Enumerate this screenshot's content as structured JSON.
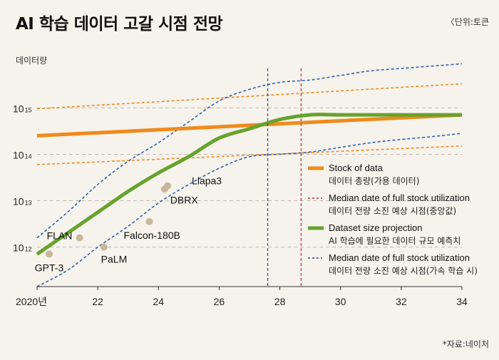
{
  "title": "AI 학습 데이터 고갈 시점 전망",
  "unit_note": "〈단위:토큰",
  "source_note": "*자료:네이처",
  "chart_data": {
    "type": "line",
    "title": "AI 학습 데이터 고갈 시점 전망",
    "ylabel": "데이터량",
    "xlabel": "",
    "y_scale": "log",
    "xlim": [
      2020,
      2034
    ],
    "ylim_log10": [
      11.15,
      15.85
    ],
    "x_ticks": [
      {
        "value": 2020,
        "label": "2020년"
      },
      {
        "value": 2022,
        "label": "22"
      },
      {
        "value": 2024,
        "label": "24"
      },
      {
        "value": 2026,
        "label": "26"
      },
      {
        "value": 2028,
        "label": "28"
      },
      {
        "value": 2030,
        "label": "30"
      },
      {
        "value": 2032,
        "label": "32"
      },
      {
        "value": 2034,
        "label": "34"
      }
    ],
    "y_ticks": [
      {
        "log10": 12,
        "base": "10",
        "exp": "12"
      },
      {
        "log10": 13,
        "base": "10",
        "exp": "13"
      },
      {
        "log10": 14,
        "base": "10",
        "exp": "14"
      },
      {
        "log10": 15,
        "base": "10",
        "exp": "15"
      }
    ],
    "grid": "horizontal-dashed",
    "legend_position": "right-middle",
    "series": [
      {
        "name": "Stock of data",
        "name_ko": "데이터 총량(가용 데이터)",
        "style": "solid-thick",
        "color": "#ef8a1c",
        "x": [
          2020,
          2034
        ],
        "y": [
          14.4,
          14.85
        ]
      },
      {
        "name": "Median date of full stock utilization",
        "name_ko": "데이터 전량 소진 예상 시점(중앙값)",
        "style": "dashed",
        "color": "#c6283a",
        "vline_x": 2028.7
      },
      {
        "name": "Dataset size projection",
        "name_ko": "AI 학습에 필요한 데이터 규모 예측치",
        "style": "solid-thick",
        "color": "#67a22e",
        "x": [
          2020,
          2021,
          2022,
          2023,
          2024,
          2025,
          2026,
          2027,
          2028,
          2029,
          2030,
          2031,
          2032,
          2033,
          2034
        ],
        "y": [
          11.85,
          12.3,
          12.75,
          13.2,
          13.6,
          13.95,
          14.35,
          14.55,
          14.75,
          14.85,
          14.85,
          14.85,
          14.85,
          14.85,
          14.85
        ]
      },
      {
        "name": "Median date of full stock utilization",
        "name_ko": "데이터 전량 소진 예상 시점(가속 학습 시)",
        "style": "dashed",
        "color": "#2f3f8f",
        "vline_x": 2027.6
      }
    ],
    "bands": [
      {
        "of": "Stock of data",
        "color": "#ef8a1c",
        "x": [
          2020,
          2034
        ],
        "lower": [
          13.78,
          14.18
        ],
        "upper": [
          14.98,
          15.52
        ]
      },
      {
        "of": "Dataset size projection",
        "color": "#2f5fb0",
        "x": [
          2020,
          2021,
          2022,
          2023,
          2024,
          2025,
          2026,
          2027,
          2028,
          2029,
          2030,
          2031,
          2032,
          2033,
          2034
        ],
        "lower": [
          11.15,
          11.5,
          12.0,
          12.45,
          12.95,
          13.35,
          13.7,
          13.95,
          14.0,
          14.05,
          14.15,
          14.25,
          14.32,
          14.38,
          14.45
        ],
        "upper": [
          12.2,
          12.75,
          13.35,
          13.85,
          14.25,
          14.7,
          15.15,
          15.4,
          15.55,
          15.6,
          15.7,
          15.8,
          15.85,
          15.9,
          15.95
        ]
      }
    ],
    "points": [
      {
        "label": "GPT-3",
        "x": 2020.4,
        "y": 11.85
      },
      {
        "label": "FLAN",
        "x": 2021.4,
        "y": 12.2
      },
      {
        "label": "PaLM",
        "x": 2022.2,
        "y": 12.0
      },
      {
        "label": "Falcon-180B",
        "x": 2023.7,
        "y": 12.55
      },
      {
        "label": "DBRX",
        "x": 2024.2,
        "y": 13.25
      },
      {
        "label": "Llapa3",
        "x": 2024.3,
        "y": 13.32
      }
    ],
    "point_color": "#c9b79c"
  }
}
